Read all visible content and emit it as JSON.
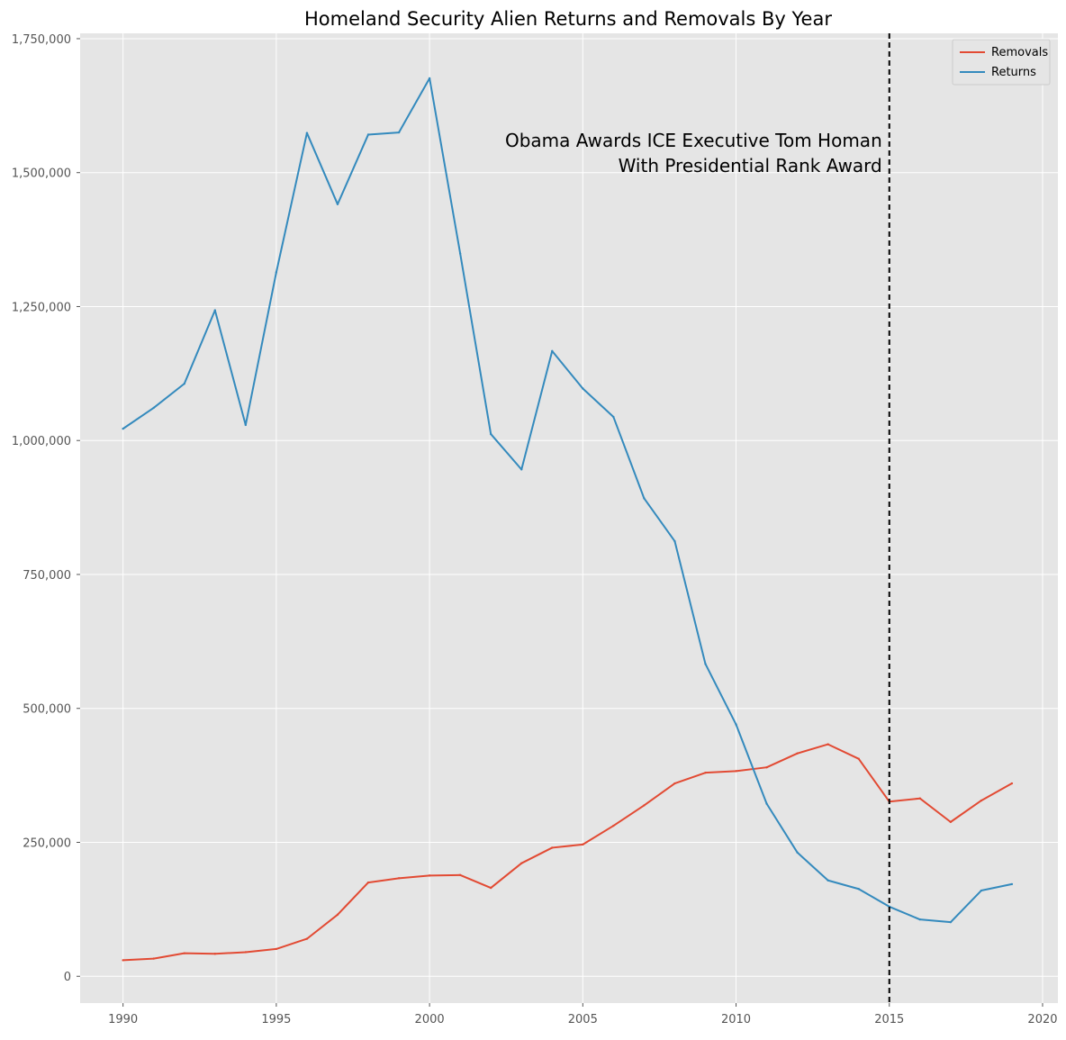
{
  "chart_data": {
    "type": "line",
    "title": "Homeland Security Alien Returns and Removals By Year",
    "xlabel": "",
    "ylabel": "",
    "xlim": [
      1988.6,
      2020.5
    ],
    "ylim": [
      -50000,
      1760000
    ],
    "x_ticks": [
      1990,
      1995,
      2000,
      2005,
      2010,
      2015,
      2020
    ],
    "y_ticks": [
      0,
      250000,
      500000,
      750000,
      1000000,
      1250000,
      1500000,
      1750000
    ],
    "y_tick_labels": [
      "0",
      "250,000",
      "500,000",
      "750,000",
      "1,000,000",
      "1,250,000",
      "1,500,000",
      "1,750,000"
    ],
    "grid": true,
    "legend_position": "top-right",
    "x": [
      1990,
      1991,
      1992,
      1993,
      1994,
      1995,
      1996,
      1997,
      1998,
      1999,
      2000,
      2001,
      2002,
      2003,
      2004,
      2005,
      2006,
      2007,
      2008,
      2009,
      2010,
      2011,
      2012,
      2013,
      2014,
      2015,
      2016,
      2017,
      2018,
      2019
    ],
    "series": [
      {
        "name": "Removals",
        "color": "#E24A33",
        "values": [
          30000,
          33000,
          43000,
          42000,
          45000,
          51000,
          70000,
          115000,
          175000,
          183000,
          188000,
          189000,
          165000,
          211000,
          240000,
          246000,
          281000,
          319000,
          360000,
          380000,
          383000,
          390000,
          416000,
          433000,
          406000,
          326000,
          332000,
          288000,
          328000,
          360000
        ]
      },
      {
        "name": "Returns",
        "color": "#348ABD",
        "values": [
          1022000,
          1061000,
          1106000,
          1243000,
          1029000,
          1314000,
          1574000,
          1441000,
          1571000,
          1575000,
          1676000,
          1349000,
          1012000,
          946000,
          1167000,
          1097000,
          1044000,
          892000,
          812000,
          583000,
          470000,
          322000,
          231000,
          179000,
          163000,
          130000,
          106000,
          101000,
          160000,
          172000
        ]
      }
    ],
    "annotations": [
      {
        "type": "vline",
        "x": 2015,
        "style": "dashed",
        "color": "#000000",
        "text_lines": [
          "Obama Awards ICE Executive Tom Homan",
          "With Presidential Rank Award"
        ]
      }
    ]
  }
}
